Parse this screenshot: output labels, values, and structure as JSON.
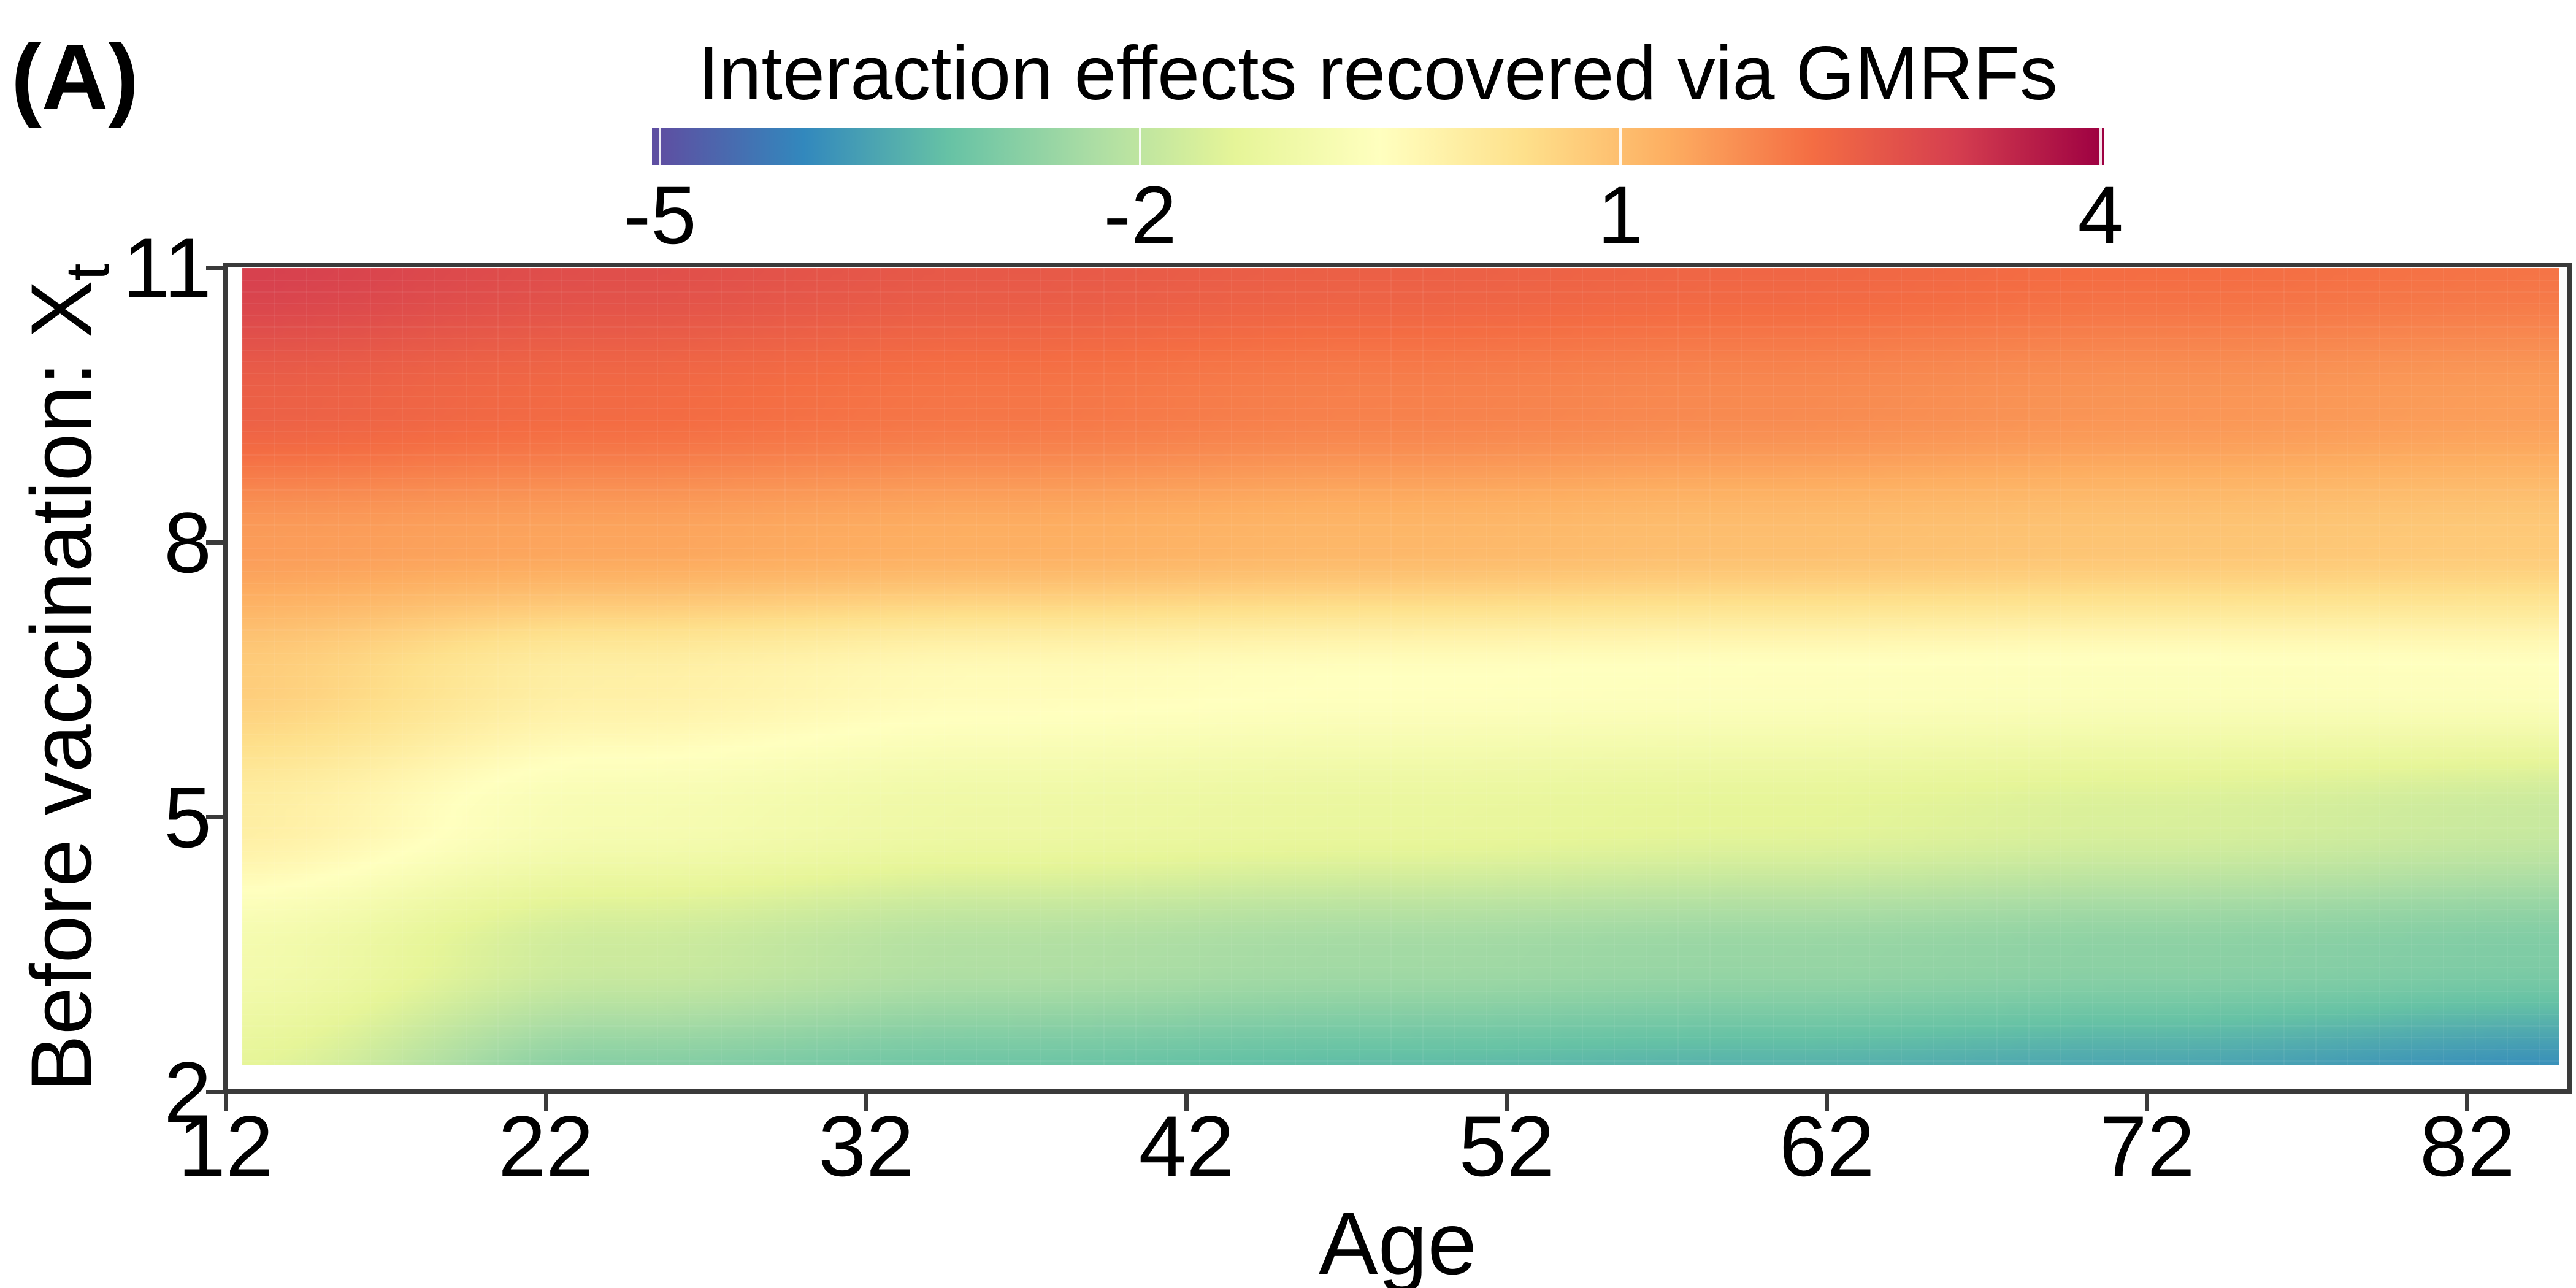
{
  "panel_label": "(A)",
  "title": "Interaction effects recovered via GMRFs",
  "axes": {
    "xlabel": "Age",
    "ylabel_main": "Before vaccination: X",
    "ylabel_sub": "t",
    "x_ticks": [
      12,
      22,
      32,
      42,
      52,
      62,
      72,
      82
    ],
    "y_ticks": [
      11,
      8,
      5,
      2
    ],
    "x_range": [
      12,
      85.2
    ],
    "y_range": [
      2,
      11.03
    ]
  },
  "colorbar": {
    "ticks": [
      -5,
      -2,
      1,
      4
    ],
    "range": [
      -5.05,
      4.02
    ]
  },
  "colors": {
    "background": "#ffffff",
    "text": "#000000",
    "spine": "#3a3a3a",
    "colorbar_tick": "#ffffff"
  },
  "chart_data": {
    "type": "heatmap",
    "title": "Interaction effects recovered via GMRFs",
    "xlabel": "Age",
    "ylabel": "Before vaccination: X_t",
    "value_label": "Interaction effect",
    "value_range": [
      -5.05,
      4.02
    ],
    "x": [
      12,
      24,
      36,
      48,
      60,
      72,
      85
    ],
    "y": [
      11,
      9.5,
      8,
      6.5,
      5,
      3.5,
      2
    ],
    "values": [
      [
        3.05,
        2.78,
        2.58,
        2.45,
        2.33,
        2.2,
        2.1
      ],
      [
        2.45,
        2.25,
        2.08,
        1.93,
        1.8,
        1.65,
        1.52
      ],
      [
        1.55,
        1.42,
        1.28,
        1.14,
        1.0,
        0.9,
        0.8
      ],
      [
        0.75,
        -0.05,
        -0.38,
        -0.5,
        -0.55,
        -0.6,
        -0.55
      ],
      [
        0.0,
        -0.8,
        -1.1,
        -1.25,
        -1.4,
        -1.6,
        -1.85
      ],
      [
        -0.9,
        -1.8,
        -2.2,
        -2.4,
        -2.55,
        -2.7,
        -2.88
      ],
      [
        -1.45,
        -2.9,
        -3.2,
        -3.4,
        -3.55,
        -3.75,
        -4.1
      ]
    ],
    "extent": {
      "age": [
        12.5,
        84.9
      ],
      "xt": [
        2.3,
        11.0
      ]
    },
    "colormap_name": "Spectral_r",
    "colormap": [
      {
        "v": -5.0,
        "c": "#5e4fa2"
      },
      {
        "v": -4.1,
        "c": "#3288bd"
      },
      {
        "v": -3.2,
        "c": "#66c2a5"
      },
      {
        "v": -2.3,
        "c": "#abdda4"
      },
      {
        "v": -1.4,
        "c": "#e6f598"
      },
      {
        "v": -0.5,
        "c": "#ffffbf"
      },
      {
        "v": 0.4,
        "c": "#fee08b"
      },
      {
        "v": 1.3,
        "c": "#fdae61"
      },
      {
        "v": 2.2,
        "c": "#f46d43"
      },
      {
        "v": 3.1,
        "c": "#d53e4f"
      },
      {
        "v": 4.0,
        "c": "#9e0142"
      }
    ]
  }
}
